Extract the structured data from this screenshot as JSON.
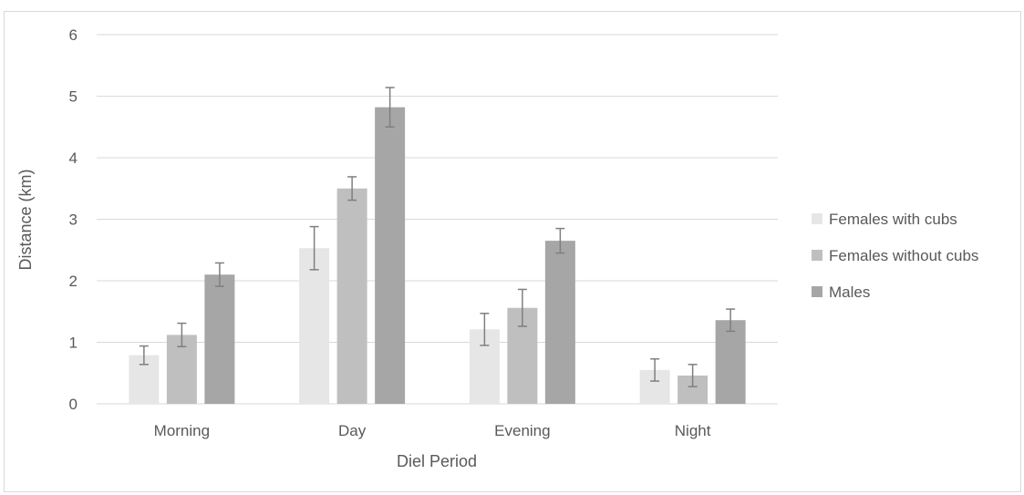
{
  "chart_data": {
    "type": "bar",
    "title": "",
    "xlabel": "Diel Period",
    "ylabel": "Distance (km)",
    "ylim": [
      0,
      6
    ],
    "yticks": [
      0,
      1,
      2,
      3,
      4,
      5,
      6
    ],
    "grid": true,
    "legend_position": "right",
    "categories": [
      "Morning",
      "Day",
      "Evening",
      "Night"
    ],
    "series": [
      {
        "name": "Females with cubs",
        "color": "#e6e6e6",
        "values": [
          0.79,
          2.53,
          1.21,
          0.55
        ],
        "error": [
          0.15,
          0.35,
          0.26,
          0.18
        ]
      },
      {
        "name": "Females without cubs",
        "color": "#bfbfbf",
        "values": [
          1.12,
          3.5,
          1.56,
          0.46
        ],
        "error": [
          0.19,
          0.19,
          0.3,
          0.18
        ]
      },
      {
        "name": "Males",
        "color": "#a6a6a6",
        "values": [
          2.1,
          4.82,
          2.65,
          1.36
        ],
        "error": [
          0.19,
          0.32,
          0.2,
          0.18
        ]
      }
    ],
    "error_bar_color": "#7f7f7f",
    "grid_color": "#d9d9d9"
  }
}
